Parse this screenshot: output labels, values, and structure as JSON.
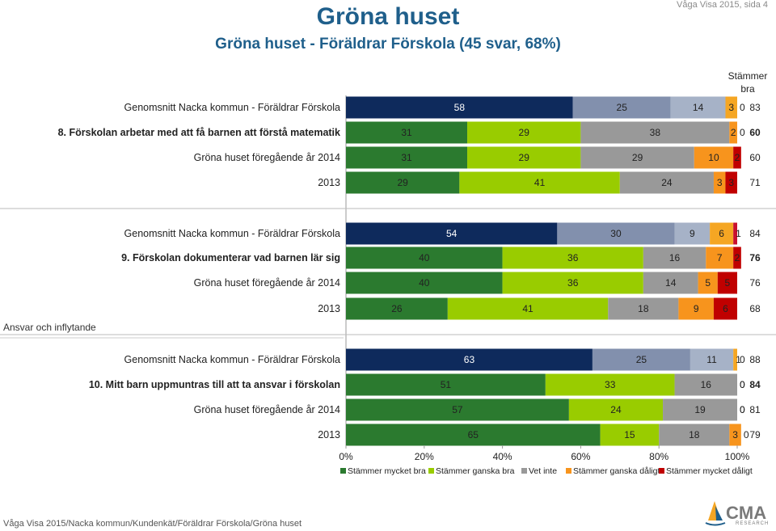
{
  "header": {
    "title": "Gröna huset",
    "subtitle": "Gröna huset - Föräldrar Förskola (45 svar, 68%)",
    "page_ref": "Våga Visa 2015, sida 4",
    "total_col_header_line1": "Stämmer",
    "total_col_header_line2": "bra"
  },
  "section_label": "Ansvar och inflytande",
  "footer": "Våga Visa 2015/Nacka kommun/Kundenkät/Föräldrar Förskola/Gröna huset",
  "logo": {
    "text": "CMA",
    "subtext": "RESEARCH"
  },
  "colors": {
    "nacka_shades": [
      "#0e2a5c",
      "#8290ad",
      "#a6b2c7",
      "#f5a623",
      "#c8102e"
    ],
    "series": [
      "#2b7a2f",
      "#99cc00",
      "#999999",
      "#f7941d",
      "#c00000"
    ]
  },
  "chart_data": {
    "type": "bar",
    "orientation": "horizontal",
    "stacked": true,
    "x_axis": {
      "min": 0,
      "max": 100,
      "ticks": [
        "0%",
        "20%",
        "40%",
        "60%",
        "80%",
        "100%"
      ]
    },
    "series_names": [
      "Stämmer mycket bra",
      "Stämmer ganska bra",
      "Vet inte",
      "Stämmer ganska dåligt",
      "Stämmer mycket dåligt"
    ],
    "legend_position": "bottom",
    "groups": [
      {
        "rows": [
          {
            "label": "Genomsnitt Nacka kommun - Föräldrar Förskola",
            "bold": false,
            "nacka": true,
            "values": [
              58,
              25,
              14,
              3,
              0
            ],
            "labels": [
              "58",
              "25",
              "14",
              "3",
              "0"
            ],
            "total": "83"
          },
          {
            "label": "8. Förskolan arbetar med att få barnen att förstå matematik",
            "bold": true,
            "nacka": false,
            "values": [
              31,
              29,
              38,
              2,
              0
            ],
            "labels": [
              "31",
              "29",
              "38",
              "2",
              "0"
            ],
            "total": "60"
          },
          {
            "label": "Gröna huset föregående år 2014",
            "bold": false,
            "nacka": false,
            "values": [
              31,
              29,
              29,
              10,
              2
            ],
            "labels": [
              "31",
              "29",
              "29",
              "10",
              "2"
            ],
            "total": "60"
          },
          {
            "label": "2013",
            "bold": false,
            "nacka": false,
            "values": [
              29,
              41,
              24,
              3,
              3
            ],
            "labels": [
              "29",
              "41",
              "24",
              "3",
              "3"
            ],
            "total": "71"
          }
        ]
      },
      {
        "rows": [
          {
            "label": "Genomsnitt Nacka kommun - Föräldrar Förskola",
            "bold": false,
            "nacka": true,
            "values": [
              54,
              30,
              9,
              6,
              1
            ],
            "labels": [
              "54",
              "30",
              "9",
              "6",
              "1"
            ],
            "total": "84"
          },
          {
            "label": "9. Förskolan dokumenterar vad barnen lär sig",
            "bold": true,
            "nacka": false,
            "values": [
              40,
              36,
              16,
              7,
              2
            ],
            "labels": [
              "40",
              "36",
              "16",
              "7",
              "2"
            ],
            "total": "76"
          },
          {
            "label": "Gröna huset föregående år 2014",
            "bold": false,
            "nacka": false,
            "values": [
              40,
              36,
              14,
              5,
              5
            ],
            "labels": [
              "40",
              "36",
              "14",
              "5",
              "5"
            ],
            "total": "76"
          },
          {
            "label": "2013",
            "bold": false,
            "nacka": false,
            "values": [
              26,
              41,
              18,
              9,
              6
            ],
            "labels": [
              "26",
              "41",
              "18",
              "9",
              "6"
            ],
            "total": "68"
          }
        ]
      },
      {
        "rows": [
          {
            "label": "Genomsnitt Nacka kommun - Föräldrar Förskola",
            "bold": false,
            "nacka": true,
            "values": [
              63,
              25,
              11,
              1,
              0
            ],
            "labels": [
              "63",
              "25",
              "11",
              "1",
              "0"
            ],
            "total": "88"
          },
          {
            "label": "10. Mitt barn uppmuntras till att ta ansvar i förskolan",
            "bold": true,
            "nacka": false,
            "values": [
              51,
              33,
              16,
              0,
              0
            ],
            "labels": [
              "51",
              "33",
              "16",
              "0",
              "0"
            ],
            "total": "84"
          },
          {
            "label": "Gröna huset föregående år 2014",
            "bold": false,
            "nacka": false,
            "values": [
              57,
              24,
              19,
              0,
              0
            ],
            "labels": [
              "57",
              "24",
              "19",
              "0",
              "0"
            ],
            "total": "81"
          },
          {
            "label": "2013",
            "bold": false,
            "nacka": false,
            "values": [
              65,
              15,
              18,
              3,
              0
            ],
            "labels": [
              "65",
              "15",
              "18",
              "3",
              "0"
            ],
            "total": "79"
          }
        ]
      }
    ]
  }
}
